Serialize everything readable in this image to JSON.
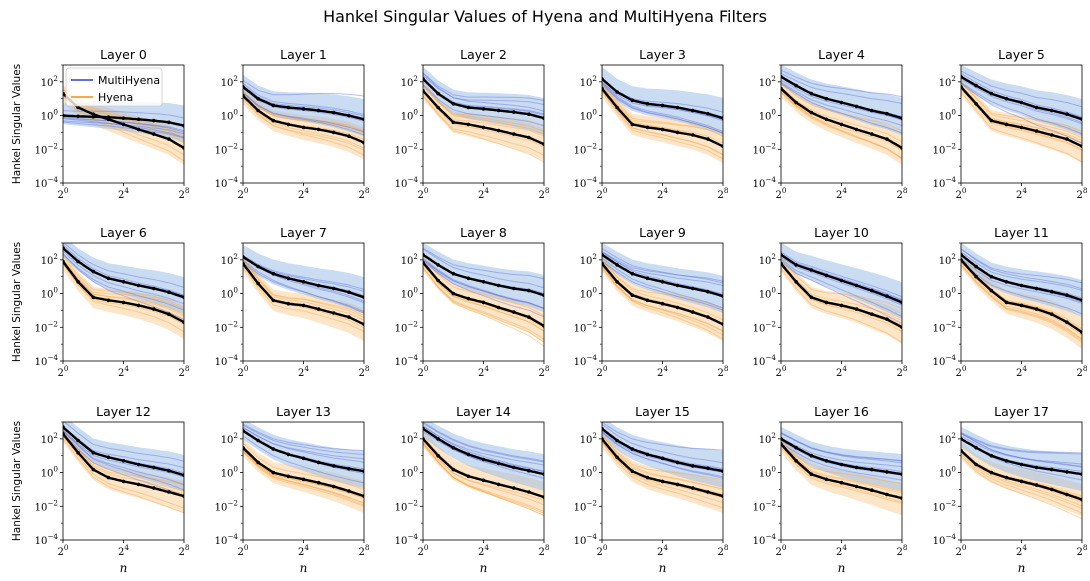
{
  "figure": {
    "title": "Hankel Singular Values of Hyena and MultiHyena Filters",
    "ylabel": "Hankel Singular Values",
    "xlabel": "n"
  },
  "legend": {
    "items": [
      {
        "label": "MultiHyena",
        "color": "#6070e0"
      },
      {
        "label": "Hyena",
        "color": "#f6a94a"
      }
    ]
  },
  "colors": {
    "multihyena_line": "#6070e0",
    "multihyena_band": "#9ec0e6",
    "hyena_line": "#f6a94a",
    "hyena_band": "#fbcf9a",
    "mean_line": "#000000"
  },
  "chart_data": {
    "type": "line",
    "grid": false,
    "legend_placement": "top-right of first panel",
    "x_scale": "log2",
    "y_scale": "log10",
    "xlim": [
      1,
      256
    ],
    "ylim": [
      0.0001,
      1000
    ],
    "x_ticks": [
      {
        "value": 1,
        "base": "2",
        "exp": "0"
      },
      {
        "value": 16,
        "base": "2",
        "exp": "4"
      },
      {
        "value": 256,
        "base": "2",
        "exp": "8"
      }
    ],
    "y_ticks": [
      {
        "value": 0.0001,
        "base": "10",
        "exp": "−4"
      },
      {
        "value": 0.01,
        "base": "10",
        "exp": "−2"
      },
      {
        "value": 1,
        "base": "10",
        "exp": "0"
      },
      {
        "value": 100,
        "base": "10",
        "exp": "2"
      }
    ],
    "x_points": [
      1,
      2,
      4,
      8,
      16,
      32,
      64,
      128,
      256
    ],
    "panels": [
      {
        "title": "Layer 0",
        "multihyena_mean": [
          1,
          0.9,
          0.85,
          0.8,
          0.7,
          0.6,
          0.5,
          0.4,
          0.25
        ],
        "hyena_mean": [
          20,
          3,
          1.2,
          0.6,
          0.3,
          0.15,
          0.08,
          0.04,
          0.012
        ]
      },
      {
        "title": "Layer 1",
        "multihyena_mean": [
          50,
          10,
          4,
          3,
          2.5,
          2,
          1.5,
          1,
          0.6
        ],
        "hyena_mean": [
          15,
          2,
          0.5,
          0.3,
          0.2,
          0.15,
          0.1,
          0.06,
          0.025
        ]
      },
      {
        "title": "Layer 2",
        "multihyena_mean": [
          150,
          20,
          5,
          3,
          2.5,
          2,
          1.6,
          1.2,
          0.7
        ],
        "hyena_mean": [
          30,
          3,
          0.4,
          0.3,
          0.2,
          0.13,
          0.08,
          0.05,
          0.02
        ]
      },
      {
        "title": "Layer 3",
        "multihyena_mean": [
          150,
          25,
          8,
          5,
          4,
          3,
          2,
          1.3,
          0.7
        ],
        "hyena_mean": [
          40,
          3,
          0.3,
          0.2,
          0.15,
          0.1,
          0.07,
          0.04,
          0.015
        ]
      },
      {
        "title": "Layer 4",
        "multihyena_mean": [
          200,
          60,
          20,
          10,
          6,
          3.5,
          2,
          1.3,
          0.7
        ],
        "hyena_mean": [
          40,
          6,
          1.5,
          0.6,
          0.3,
          0.15,
          0.08,
          0.04,
          0.012
        ]
      },
      {
        "title": "Layer 5",
        "multihyena_mean": [
          200,
          60,
          20,
          10,
          6,
          3,
          2,
          1.2,
          0.6
        ],
        "hyena_mean": [
          50,
          5,
          0.5,
          0.3,
          0.2,
          0.12,
          0.07,
          0.04,
          0.015
        ]
      },
      {
        "title": "Layer 6",
        "multihyena_mean": [
          500,
          80,
          20,
          8,
          5,
          3,
          2,
          1.2,
          0.6
        ],
        "hyena_mean": [
          80,
          5,
          0.6,
          0.4,
          0.3,
          0.2,
          0.12,
          0.06,
          0.02
        ]
      },
      {
        "title": "Layer 7",
        "multihyena_mean": [
          150,
          40,
          15,
          8,
          5,
          3,
          2,
          1.2,
          0.6
        ],
        "hyena_mean": [
          60,
          4,
          0.4,
          0.25,
          0.2,
          0.12,
          0.07,
          0.04,
          0.015
        ]
      },
      {
        "title": "Layer 8",
        "multihyena_mean": [
          200,
          50,
          15,
          8,
          5,
          3,
          2,
          1.5,
          0.8
        ],
        "hyena_mean": [
          70,
          6,
          1,
          0.5,
          0.3,
          0.15,
          0.08,
          0.04,
          0.012
        ]
      },
      {
        "title": "Layer 9",
        "multihyena_mean": [
          200,
          50,
          15,
          8,
          5,
          3,
          2,
          1.3,
          0.7
        ],
        "hyena_mean": [
          60,
          5,
          0.8,
          0.4,
          0.25,
          0.15,
          0.08,
          0.04,
          0.015
        ]
      },
      {
        "title": "Layer 10",
        "multihyena_mean": [
          200,
          50,
          25,
          12,
          6,
          3,
          1.5,
          0.7,
          0.3
        ],
        "hyena_mean": [
          60,
          5,
          0.6,
          0.3,
          0.2,
          0.12,
          0.06,
          0.03,
          0.01
        ]
      },
      {
        "title": "Layer 11",
        "multihyena_mean": [
          200,
          40,
          10,
          5,
          3,
          2,
          1.3,
          0.8,
          0.4
        ],
        "hyena_mean": [
          100,
          10,
          1.5,
          0.3,
          0.2,
          0.12,
          0.06,
          0.02,
          0.005
        ]
      },
      {
        "title": "Layer 12",
        "multihyena_mean": [
          500,
          80,
          15,
          8,
          5,
          3,
          2,
          1.3,
          0.7
        ],
        "hyena_mean": [
          200,
          15,
          1.5,
          0.5,
          0.3,
          0.2,
          0.12,
          0.07,
          0.04
        ]
      },
      {
        "title": "Layer 13",
        "multihyena_mean": [
          300,
          80,
          25,
          12,
          7,
          4,
          2.5,
          1.7,
          1.2
        ],
        "hyena_mean": [
          30,
          4,
          1,
          0.6,
          0.4,
          0.25,
          0.15,
          0.08,
          0.04
        ]
      },
      {
        "title": "Layer 14",
        "multihyena_mean": [
          400,
          100,
          30,
          12,
          6,
          3.5,
          2,
          1.3,
          0.8
        ],
        "hyena_mean": [
          100,
          10,
          1.5,
          0.6,
          0.35,
          0.2,
          0.12,
          0.07,
          0.035
        ]
      },
      {
        "title": "Layer 15",
        "multihyena_mean": [
          400,
          80,
          25,
          12,
          7,
          4,
          2.5,
          1.8,
          1.2
        ],
        "hyena_mean": [
          100,
          8,
          1.2,
          0.5,
          0.3,
          0.2,
          0.12,
          0.07,
          0.04
        ]
      },
      {
        "title": "Layer 16",
        "multihyena_mean": [
          100,
          30,
          10,
          5,
          3,
          2,
          1.5,
          1.1,
          0.8
        ],
        "hyena_mean": [
          50,
          5,
          0.8,
          0.4,
          0.25,
          0.15,
          0.09,
          0.05,
          0.03
        ]
      },
      {
        "title": "Layer 17",
        "multihyena_mean": [
          100,
          30,
          10,
          5,
          3,
          2,
          1.5,
          1.1,
          0.8
        ],
        "hyena_mean": [
          20,
          3,
          1,
          0.5,
          0.3,
          0.18,
          0.1,
          0.05,
          0.025
        ]
      }
    ]
  }
}
